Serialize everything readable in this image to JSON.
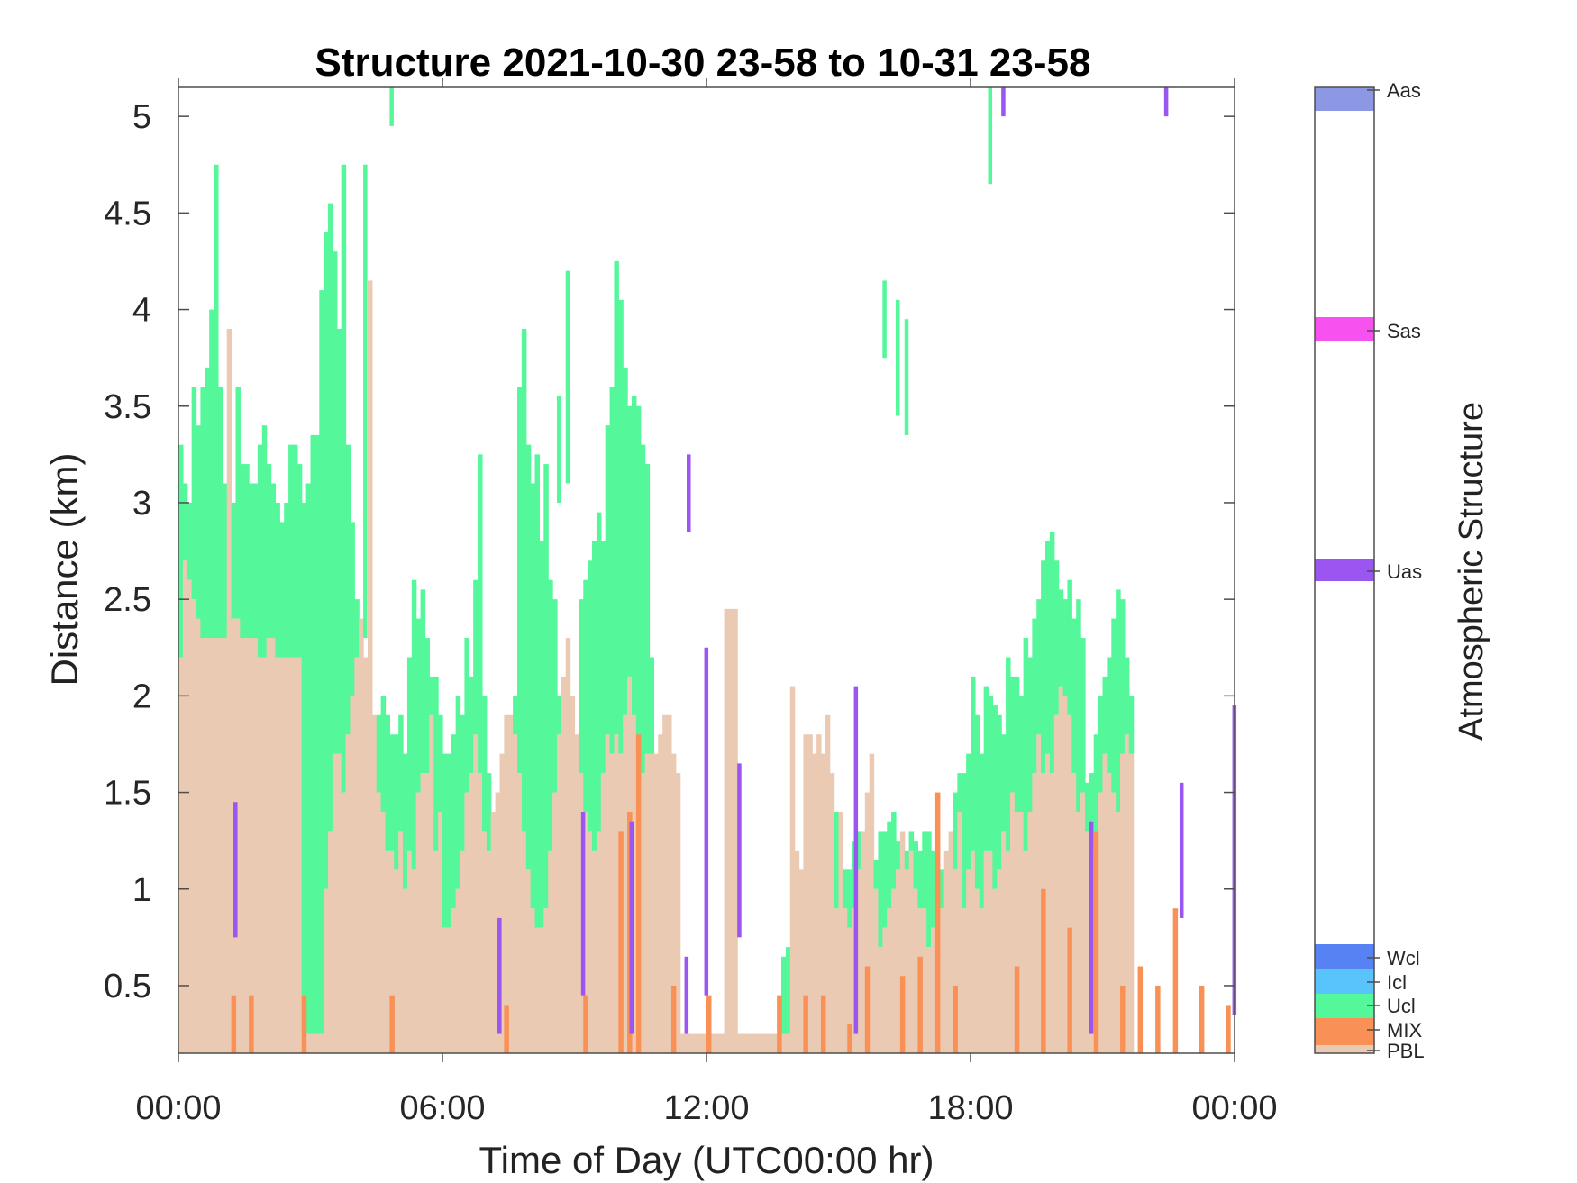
{
  "title": "Structure 2021-10-30 23-58 to 10-31 23-58",
  "xlabel": "Time of Day (UTC00:00 hr)",
  "ylabel": "Distance (km)",
  "colorbar": {
    "label": "Atmospheric Structure",
    "classes": [
      {
        "name": "PBL",
        "color": "#ebcab3"
      },
      {
        "name": "MIX",
        "color": "#f99157"
      },
      {
        "name": "Ucl",
        "color": "#54f79a"
      },
      {
        "name": "Icl",
        "color": "#58c4fb"
      },
      {
        "name": "Wcl",
        "color": "#5782f4"
      },
      {
        "name": "Uas",
        "color": "#9b55f0"
      },
      {
        "name": "Sas",
        "color": "#f752ef"
      },
      {
        "name": "Aas",
        "color": "#8c98e4"
      }
    ]
  },
  "chart_data": {
    "type": "heatmap",
    "title": "Structure 2021-10-30 23-58 to 10-31 23-58",
    "xlabel": "Time of Day (UTC00:00 hr)",
    "ylabel": "Distance (km)",
    "xlim_hours": [
      0,
      24
    ],
    "ylim_km": [
      0.15,
      5.15
    ],
    "xticks": [
      0,
      6,
      12,
      18,
      24
    ],
    "xtick_labels": [
      "00:00",
      "06:00",
      "12:00",
      "18:00",
      "00:00"
    ],
    "yticks": [
      0.5,
      1,
      1.5,
      2,
      2.5,
      3,
      3.5,
      4,
      4.5,
      5
    ],
    "ytick_labels": [
      "0.5",
      "1",
      "1.5",
      "2",
      "2.5",
      "3",
      "3.5",
      "4",
      "4.5",
      "5"
    ],
    "grid": false,
    "legend": "colorbar right",
    "column_width_hours": 0.1,
    "pbl_top_km": [
      2.2,
      2.7,
      2.6,
      2.5,
      2.4,
      2.3,
      2.3,
      2.3,
      2.3,
      2.3,
      2.3,
      3.9,
      2.4,
      2.4,
      2.3,
      2.3,
      2.3,
      2.3,
      2.2,
      2.2,
      2.3,
      2.3,
      2.2,
      2.2,
      2.2,
      2.2,
      2.2,
      2.2,
      0.25,
      0.25,
      0.25,
      0.25,
      0.25,
      1.0,
      1.3,
      1.7,
      1.7,
      1.5,
      1.8,
      2.0,
      2.2,
      2.4,
      2.2,
      4.15,
      1.9,
      1.5,
      1.4,
      1.2,
      1.2,
      1.1,
      1.3,
      1.0,
      1.2,
      1.1,
      1.5,
      1.6,
      1.6,
      1.9,
      1.2,
      1.4,
      0.8,
      0.8,
      0.9,
      1.0,
      1.2,
      1.5,
      1.6,
      1.8,
      1.6,
      1.3,
      1.2,
      1.4,
      1.5,
      1.7,
      1.9,
      1.9,
      1.8,
      1.6,
      1.3,
      1.1,
      0.9,
      0.8,
      0.8,
      0.9,
      1.2,
      1.5,
      1.8,
      2.1,
      2.3,
      2.0,
      1.8,
      1.6,
      1.4,
      1.3,
      1.2,
      1.3,
      1.6,
      1.8,
      1.7,
      1.8,
      1.7,
      1.9,
      2.1,
      1.9,
      1.7,
      1.6,
      1.7,
      1.7,
      1.7,
      1.8,
      1.9,
      1.9,
      1.7,
      1.6,
      0.25,
      0.25,
      0.25,
      0.25,
      0.25,
      0.25,
      0.25,
      0.25,
      0.25,
      0.25,
      2.45,
      2.45,
      2.45,
      0.25,
      0.25,
      0.25,
      0.25,
      0.25,
      0.25,
      0.25,
      0.25,
      0.25,
      0.25,
      0.25,
      0.25,
      2.05,
      1.2,
      1.1,
      1.8,
      1.8,
      1.7,
      1.8,
      1.7,
      1.9,
      1.6,
      0.9,
      1.4,
      0.9,
      0.8,
      0.9,
      1.1,
      1.3,
      1.5,
      1.7,
      1.0,
      0.7,
      0.8,
      0.9,
      1.0,
      1.1,
      1.3,
      1.1,
      1.2,
      1.0,
      0.9,
      0.9,
      0.7,
      0.8,
      1.0,
      0.9,
      1.2,
      1.3,
      1.1,
      1.4,
      0.9,
      1.1,
      1.2,
      1.0,
      0.9,
      1.2,
      1.2,
      1.0,
      1.1,
      1.3,
      1.2,
      1.5,
      1.4,
      1.4,
      1.2,
      1.4,
      1.6,
      1.8,
      1.6,
      1.7,
      1.6,
      1.9,
      2.05,
      2.0,
      1.9,
      1.6,
      1.4,
      1.5,
      1.3,
      1.2,
      1.3,
      1.5,
      1.7,
      1.6,
      1.5,
      1.4,
      1.7,
      1.8,
      1.7,
      1.8,
      1.75,
      1.6,
      1.4
    ],
    "ucl_top_km": [
      3.3,
      3.1,
      3.0,
      3.6,
      3.4,
      3.6,
      3.7,
      4.0,
      4.75,
      3.6,
      3.1,
      3.0,
      3.0,
      3.6,
      3.2,
      3.2,
      3.1,
      3.1,
      3.3,
      3.4,
      3.2,
      3.1,
      3.0,
      2.9,
      3.0,
      3.3,
      3.3,
      3.2,
      3.0,
      3.1,
      3.35,
      3.35,
      4.1,
      4.4,
      4.55,
      4.3,
      3.9,
      4.75,
      3.3,
      2.9,
      2.5,
      2.2,
      2.0,
      2.0,
      1.9,
      1.9,
      2.0,
      1.9,
      1.8,
      1.8,
      1.9,
      1.7,
      2.2,
      2.6,
      2.4,
      2.55,
      2.3,
      2.1,
      2.1,
      1.9,
      1.7,
      1.7,
      1.8,
      2.0,
      1.9,
      2.3,
      2.1,
      2.6,
      3.25,
      2.0,
      1.6,
      1.35,
      1.35,
      1.3,
      1.35,
      1.5,
      2.0,
      3.6,
      3.9,
      3.3,
      3.1,
      3.25,
      2.8,
      3.2,
      2.6,
      2.5,
      2.0,
      1.7,
      1.4,
      1.25,
      1.2,
      2.5,
      2.6,
      2.7,
      2.8,
      2.95,
      2.8,
      3.4,
      3.6,
      4.25,
      4.05,
      3.7,
      3.5,
      3.55,
      3.5,
      3.3,
      3.2,
      2.2,
      0.25,
      0.25,
      0.25,
      0.25,
      0.25,
      0.25,
      0.25,
      0.25,
      0.25,
      0.25,
      0.25,
      0.25,
      0.25,
      0.25,
      0.25,
      0.25,
      0.25,
      0.25,
      0.25,
      0.25,
      0.25,
      0.25,
      0.25,
      0.25,
      0.25,
      0.25,
      0.25,
      0.25,
      0.25,
      0.65,
      0.7,
      0.7,
      0.6,
      0.6,
      0.65,
      0.65,
      0.7,
      1.0,
      1.4,
      1.05,
      1.5,
      1.4,
      1.2,
      1.1,
      1.1,
      1.25,
      1.3,
      1.15,
      1.25,
      1.2,
      1.15,
      1.3,
      1.3,
      1.35,
      1.4,
      1.25,
      1.2,
      1.2,
      1.3,
      1.25,
      1.2,
      1.3,
      1.3,
      1.2,
      1.1,
      1.1,
      1.2,
      1.1,
      1.5,
      1.6,
      1.6,
      1.7,
      2.1,
      1.9,
      1.7,
      2.05,
      2.0,
      1.95,
      1.9,
      1.8,
      2.2,
      2.1,
      2.1,
      2.0,
      2.3,
      2.2,
      2.4,
      2.5,
      2.7,
      2.8,
      2.85,
      2.7,
      2.55,
      2.5,
      2.6,
      2.4,
      2.5,
      2.3,
      1.55,
      1.6,
      1.8,
      2.0,
      2.1,
      2.2,
      2.4,
      2.55,
      2.5,
      2.2,
      2.0
    ],
    "series": [
      {
        "name": "PBL"
      },
      {
        "name": "MIX",
        "bars_km": [
          [
            1.2,
            0.45
          ],
          [
            1.6,
            0.45
          ],
          [
            2.8,
            0.45
          ],
          [
            4.8,
            0.45
          ],
          [
            7.4,
            0.4
          ],
          [
            9.2,
            0.45
          ],
          [
            10.0,
            1.3
          ],
          [
            10.2,
            1.4
          ],
          [
            10.4,
            1.8
          ],
          [
            11.2,
            0.5
          ],
          [
            12.0,
            0.45
          ],
          [
            13.6,
            0.45
          ],
          [
            14.2,
            0.45
          ],
          [
            14.6,
            0.45
          ],
          [
            15.2,
            0.3
          ],
          [
            15.6,
            0.6
          ],
          [
            16.4,
            0.55
          ],
          [
            16.8,
            0.65
          ],
          [
            17.2,
            1.5
          ],
          [
            17.6,
            0.5
          ],
          [
            19.0,
            0.6
          ],
          [
            19.6,
            1.0
          ],
          [
            20.2,
            0.8
          ],
          [
            20.8,
            1.3
          ],
          [
            21.4,
            0.5
          ],
          [
            21.8,
            0.6
          ],
          [
            22.2,
            0.5
          ],
          [
            22.6,
            0.9
          ],
          [
            23.2,
            0.5
          ],
          [
            23.8,
            0.4
          ]
        ]
      },
      {
        "name": "Ucl"
      },
      {
        "name": "Icl"
      },
      {
        "name": "Wcl"
      },
      {
        "name": "Uas",
        "bars_km": [
          [
            1.25,
            0.75,
            1.45
          ],
          [
            7.25,
            0.25,
            0.85
          ],
          [
            9.15,
            0.45,
            1.4
          ],
          [
            10.25,
            0.25,
            1.35
          ],
          [
            11.5,
            0.25,
            0.65
          ],
          [
            11.55,
            2.85,
            3.25
          ],
          [
            11.95,
            0.45,
            2.25
          ],
          [
            12.7,
            0.75,
            1.65
          ],
          [
            15.35,
            0.25,
            2.05
          ],
          [
            20.7,
            0.25,
            1.35
          ],
          [
            22.75,
            0.85,
            1.55
          ],
          [
            23.95,
            0.35,
            1.95
          ],
          [
            18.7,
            5.0,
            5.15
          ],
          [
            22.4,
            5.0,
            5.15
          ]
        ]
      },
      {
        "name": "Sas"
      },
      {
        "name": "Aas"
      }
    ],
    "isolated_ucl_km": [
      [
        4.8,
        4.95,
        5.15
      ],
      [
        18.4,
        4.65,
        5.15
      ],
      [
        16.0,
        3.75,
        4.15
      ],
      [
        16.3,
        3.45,
        4.05
      ],
      [
        16.5,
        3.35,
        3.95
      ],
      [
        8.8,
        3.1,
        4.2
      ],
      [
        8.6,
        3.0,
        3.55
      ],
      [
        4.2,
        2.3,
        4.75
      ]
    ]
  }
}
